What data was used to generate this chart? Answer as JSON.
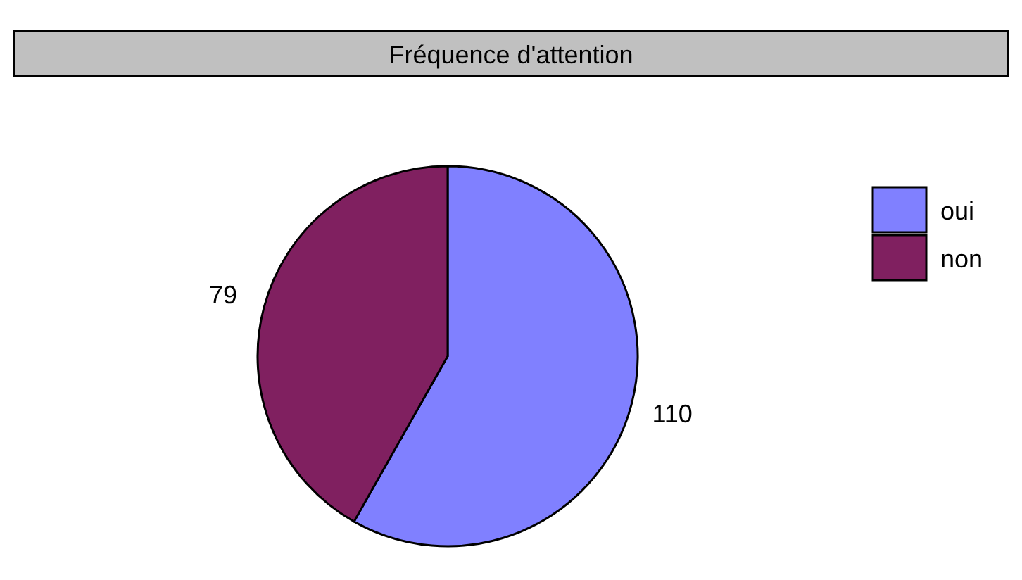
{
  "chart_data": {
    "type": "pie",
    "title": "Fréquence d'attention",
    "categories": [
      "oui",
      "non"
    ],
    "values": [
      110,
      79
    ],
    "colors": [
      "#8080ff",
      "#802060"
    ],
    "data_labels": true,
    "legend": "top right"
  }
}
